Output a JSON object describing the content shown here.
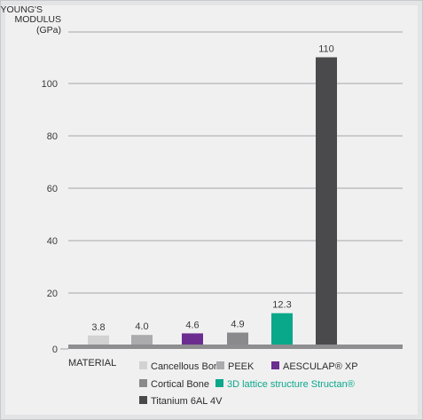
{
  "chart_data": {
    "type": "bar",
    "ylabel": [
      "YOUNG'S",
      "MODULUS",
      "(GPa)"
    ],
    "xlabel": "MATERIAL",
    "ylim": [
      0,
      120
    ],
    "yticks": [
      0,
      20,
      40,
      60,
      80,
      100
    ],
    "grid": true,
    "bars": [
      {
        "label": "Cancellous Bone",
        "value": 3.8,
        "value_text": "3.8",
        "color": "#d2d2d3",
        "bar_fraction": 0.038
      },
      {
        "label": "PEEK",
        "value": 4.0,
        "value_text": "4.0",
        "color": "#ababad",
        "bar_fraction": 0.04
      },
      {
        "label": "AESCULAP® XP",
        "value": 4.6,
        "value_text": "4.6",
        "color": "#6b2d8f",
        "bar_fraction": 0.046
      },
      {
        "label": "Cortical Bone",
        "value": 4.9,
        "value_text": "4.9",
        "color": "#8a8a8c",
        "bar_fraction": 0.049
      },
      {
        "label": "3D lattice structure Structan®",
        "value": 12.3,
        "value_text": "12.3",
        "color": "#0aa88a",
        "bar_fraction": 0.123
      },
      {
        "label": "Titanium 6AL 4V",
        "value": 110,
        "value_text": "110",
        "color": "#4a4a4c",
        "bar_fraction": 1.1
      }
    ],
    "legend": [
      {
        "text": "Cancellous Bone",
        "color": "#d2d2d3",
        "text_color": "#2b2b2b"
      },
      {
        "text": "PEEK",
        "color": "#ababad",
        "text_color": "#2b2b2b"
      },
      {
        "text": "AESCULAP® XP",
        "color": "#6b2d8f",
        "text_color": "#2b2b2b"
      },
      {
        "text": "Cortical Bone",
        "color": "#8a8a8c",
        "text_color": "#2b2b2b"
      },
      {
        "text": "3D lattice structure Structan®",
        "color": "#0aa88a",
        "text_color": "#0aa88a"
      },
      {
        "text": "Titanium 6AL 4V",
        "color": "#4a4a4c",
        "text_color": "#2b2b2b"
      }
    ],
    "axis_color": "#8e8e90",
    "grid_color": "#8e8e90"
  }
}
